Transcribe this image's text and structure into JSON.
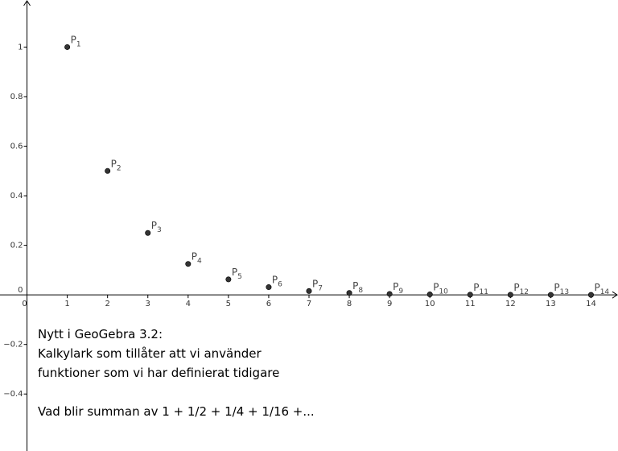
{
  "chart_data": {
    "type": "scatter",
    "x_ticks": [
      0,
      1,
      2,
      3,
      4,
      5,
      6,
      7,
      8,
      9,
      10,
      11,
      12,
      13,
      14
    ],
    "y_ticks": [
      -0.4,
      -0.2,
      0,
      0.2,
      0.4,
      0.6,
      0.8,
      1
    ],
    "y_tick_labels": [
      "−0.4",
      "−0.2",
      "0",
      "0.2",
      "0.4",
      "0.6",
      "0.8",
      "1"
    ],
    "points": [
      {
        "name": "P",
        "index": "1",
        "x": 1,
        "y": 1
      },
      {
        "name": "P",
        "index": "2",
        "x": 2,
        "y": 0.5
      },
      {
        "name": "P",
        "index": "3",
        "x": 3,
        "y": 0.25
      },
      {
        "name": "P",
        "index": "4",
        "x": 4,
        "y": 0.125
      },
      {
        "name": "P",
        "index": "5",
        "x": 5,
        "y": 0.0625
      },
      {
        "name": "P",
        "index": "6",
        "x": 6,
        "y": 0.03125
      },
      {
        "name": "P",
        "index": "7",
        "x": 7,
        "y": 0.015625
      },
      {
        "name": "P",
        "index": "8",
        "x": 8,
        "y": 0.0078125
      },
      {
        "name": "P",
        "index": "9",
        "x": 9,
        "y": 0.00390625
      },
      {
        "name": "P",
        "index": "10",
        "x": 10,
        "y": 0.001953125
      },
      {
        "name": "P",
        "index": "11",
        "x": 11,
        "y": 0.0009765625
      },
      {
        "name": "P",
        "index": "12",
        "x": 12,
        "y": 0.00048828125
      },
      {
        "name": "P",
        "index": "13",
        "x": 13,
        "y": 0.000244140625
      },
      {
        "name": "P",
        "index": "14",
        "x": 14,
        "y": 0.0001220703125
      }
    ],
    "xlim": [
      -0.67,
      14.67
    ],
    "ylim": [
      -0.63,
      1.19
    ],
    "grid": false,
    "point_color": "#333333"
  },
  "textbox": {
    "line1": "Nytt i GeoGebra 3.2:",
    "line2": "Kalkylark som tillåter att vi använder",
    "line3": "funktioner som vi har definierat tidigare",
    "line4": "Vad blir summan av 1 + 1/2 + 1/4 + 1/16 +..."
  }
}
